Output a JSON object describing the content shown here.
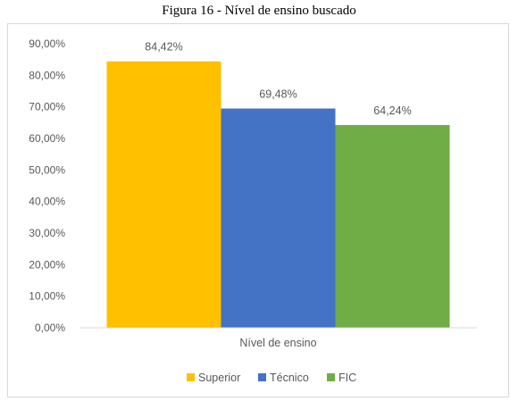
{
  "caption": "Figura 16 - Nível de ensino buscado",
  "chart_data": {
    "type": "bar",
    "categories": [
      "Nível de ensino"
    ],
    "xlabel": "Nível de ensino",
    "ylabel": "",
    "ylim": [
      0,
      90
    ],
    "yticks": [
      "0,00%",
      "10,00%",
      "20,00%",
      "30,00%",
      "40,00%",
      "50,00%",
      "60,00%",
      "70,00%",
      "80,00%",
      "90,00%"
    ],
    "grid": false,
    "legend_position": "bottom",
    "series": [
      {
        "name": "Superior",
        "values": [
          84.42
        ],
        "label": "84,42%",
        "color": "#ffc000"
      },
      {
        "name": "Técnico",
        "values": [
          69.48
        ],
        "label": "69,48%",
        "color": "#4472c4"
      },
      {
        "name": "FIC",
        "values": [
          64.24
        ],
        "label": "64,24%",
        "color": "#70ad47"
      }
    ],
    "axis_color": "#d9d9d9",
    "text_color": "#595959"
  }
}
